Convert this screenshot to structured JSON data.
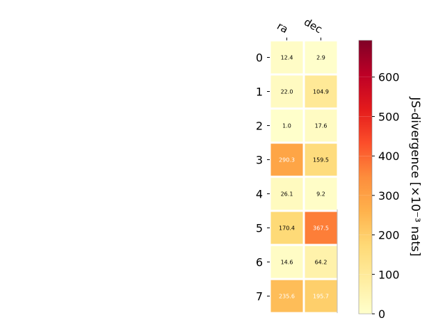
{
  "chart_data": {
    "type": "heatmap",
    "title": "",
    "x_categories": [
      "ra",
      "dec"
    ],
    "y_categories": [
      "0",
      "1",
      "2",
      "3",
      "4",
      "5",
      "6",
      "7"
    ],
    "values": [
      [
        12.4,
        2.9
      ],
      [
        22.0,
        104.9
      ],
      [
        1.0,
        17.6
      ],
      [
        290.3,
        159.5
      ],
      [
        26.1,
        9.2
      ],
      [
        170.4,
        367.5
      ],
      [
        14.6,
        64.2
      ],
      [
        235.6,
        195.7
      ]
    ],
    "value_labels": [
      [
        "12.4",
        "2.9"
      ],
      [
        "22.0",
        "104.9"
      ],
      [
        "1.0",
        "17.6"
      ],
      [
        "290.3",
        "159.5"
      ],
      [
        "26.1",
        "9.2"
      ],
      [
        "170.4",
        "367.5"
      ],
      [
        "14.6",
        "64.2"
      ],
      [
        "235.6",
        "195.7"
      ]
    ],
    "colorbar": {
      "label": "JS-divergence [×10⁻³ nats]",
      "colormap": "YlOrRd",
      "vmin": 0,
      "vmax": 693,
      "ticks": [
        "0",
        "100",
        "200",
        "300",
        "400",
        "500",
        "600"
      ],
      "tick_values": [
        0,
        100,
        200,
        300,
        400,
        500,
        600
      ]
    }
  }
}
